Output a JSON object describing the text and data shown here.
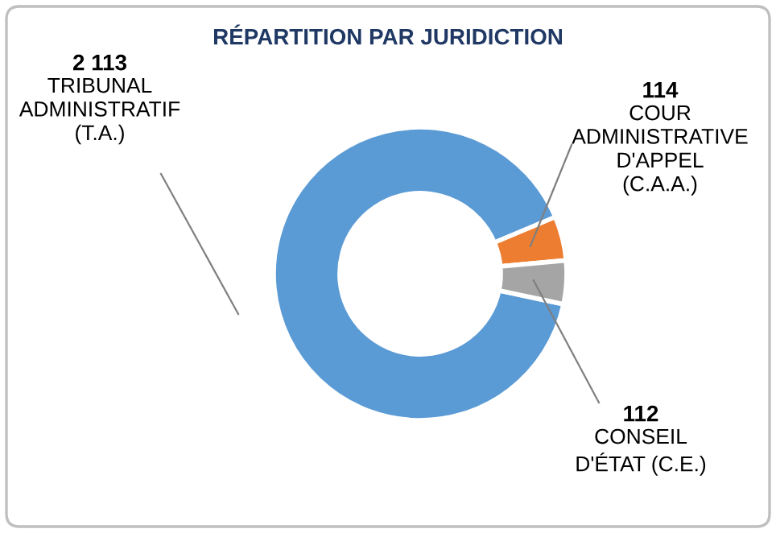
{
  "chart_data": {
    "type": "donut",
    "title": "RÉPARTITION PAR JURIDICTION",
    "categories": [
      "TRIBUNAL\nADMINISTRATIF\n(T.A.)",
      "COUR\nADMINISTRATIVE\nD'APPEL\n(C.A.A.)",
      "CONSEIL\nD'ÉTAT (C.E.)"
    ],
    "values": [
      2113,
      114,
      112
    ],
    "value_labels": [
      "2 113",
      "114",
      "112"
    ],
    "colors": [
      "#5b9bd5",
      "#ed7d31",
      "#a5a5a5"
    ],
    "legend": false
  }
}
